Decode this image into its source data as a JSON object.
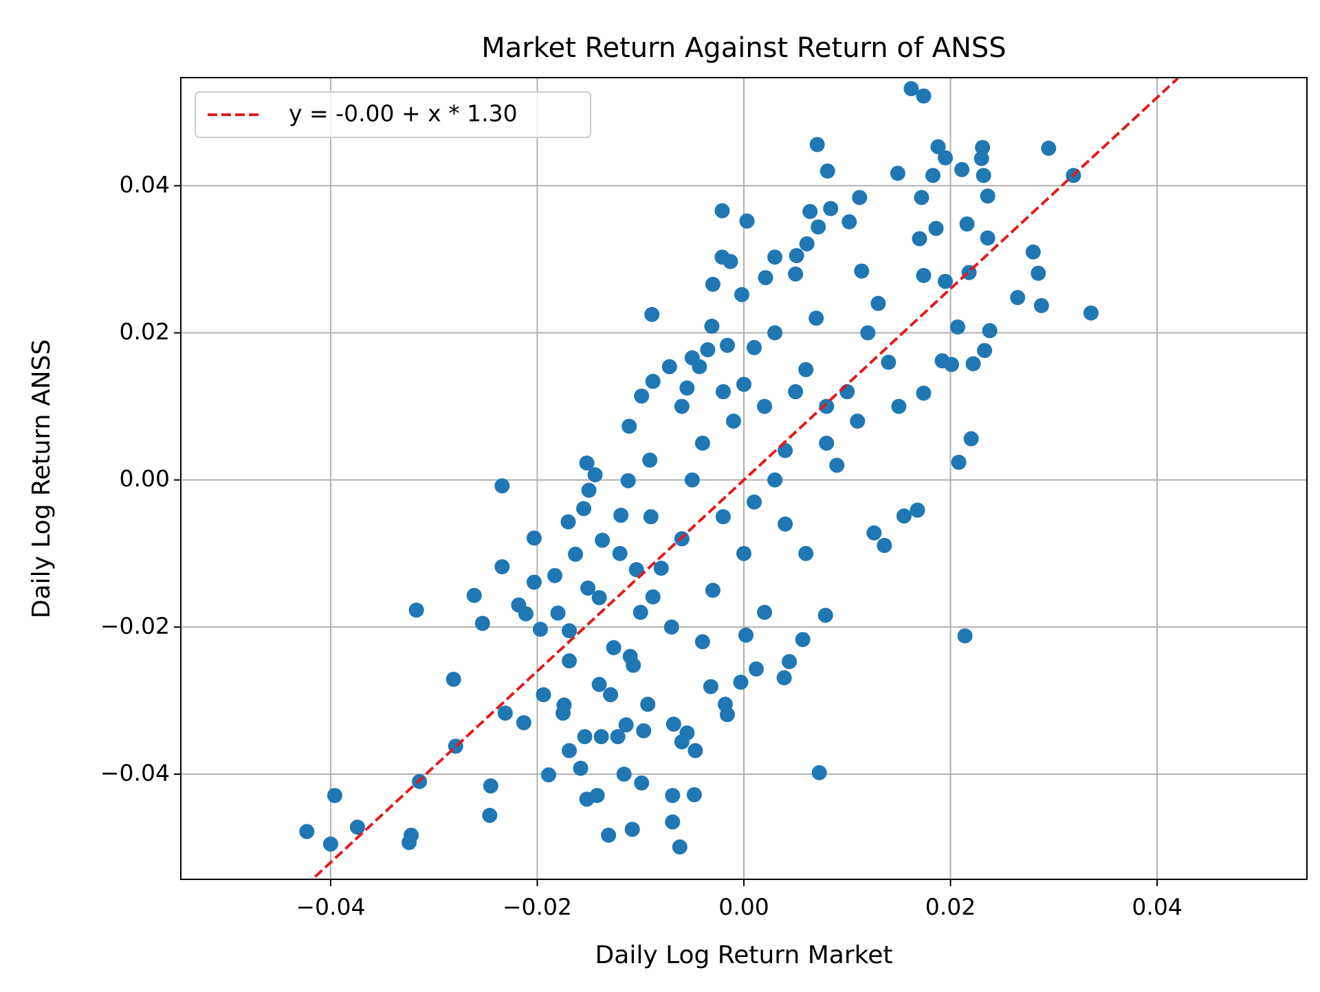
{
  "chart_data": {
    "type": "scatter",
    "title": "Market Return Against Return of ANSS",
    "x_label": "Daily Log Return Market",
    "y_label": "Daily Log Return ANSS",
    "xlim": [
      -0.0545,
      0.0545
    ],
    "ylim": [
      -0.0543,
      0.0547
    ],
    "xticks": [
      {
        "value": -0.04,
        "label": "−0.04"
      },
      {
        "value": -0.02,
        "label": "−0.02"
      },
      {
        "value": 0,
        "label": "0.00"
      },
      0.02,
      0.04
    ],
    "yticks": [
      {
        "value": -0.04,
        "label": "−0.04"
      },
      {
        "value": -0.02,
        "label": "−0.02"
      },
      {
        "value": 0,
        "label": "0.00"
      },
      0.02,
      0.04
    ],
    "grid": true,
    "legend": "upper-left",
    "series": [
      {
        "type": "scatter",
        "color": "#1f77b4",
        "x": [
          -0.0423,
          -0.04,
          -0.0396,
          -0.0374,
          -0.0324,
          -0.0322,
          -0.0314,
          -0.0317,
          -0.0281,
          -0.0279,
          -0.0261,
          -0.0253,
          -0.0246,
          -0.0245,
          -0.0234,
          -0.0234,
          -0.0231,
          -0.0218,
          -0.0213,
          -0.0211,
          -0.0203,
          -0.0203,
          -0.0197,
          -0.0194,
          -0.0189,
          -0.0183,
          -0.018,
          -0.0175,
          -0.0174,
          -0.017,
          -0.0169,
          -0.0169,
          -0.0169,
          -0.0163,
          -0.0158,
          -0.0155,
          -0.0152,
          -0.015,
          -0.0154,
          -0.0152,
          -0.0151,
          -0.0144,
          -0.0142,
          -0.014,
          -0.0138,
          -0.0137,
          -0.0131,
          -0.0129,
          -0.0126,
          -0.0122,
          -0.0119,
          -0.0116,
          -0.0114,
          -0.0112,
          -0.0111,
          -0.0108,
          -0.0107,
          -0.0104,
          -0.0099,
          -0.0099,
          -0.0097,
          -0.0093,
          -0.0089,
          -0.0088,
          -0.0091,
          -0.0088,
          -0.0072,
          -0.0069,
          -0.0069,
          -0.0068,
          -0.0062,
          -0.006,
          -0.0055,
          -0.0055,
          -0.005,
          -0.0048,
          -0.0047,
          -0.0043,
          -0.0035,
          -0.0032,
          -0.003,
          -0.0031,
          -0.0021,
          -0.0021,
          -0.0018,
          -0.0016,
          -0.0013,
          -0.0016,
          0.0003,
          -0.0002,
          -0.0003,
          0.0002,
          0.0012,
          0.0021,
          0.003,
          0.0039,
          0.0044,
          0.0051,
          0.0057,
          0.0061,
          0.0064,
          0.0071,
          0.0073,
          0.0072,
          0.0079,
          0.0081,
          0.0084,
          0.0102,
          0.0112,
          0.0114,
          0.0126,
          0.0136,
          0.0149,
          0.0155,
          0.0162,
          0.0174,
          0.0168,
          0.017,
          0.0172,
          0.0174,
          0.0174,
          0.0183,
          0.0186,
          0.0188,
          0.0195,
          0.0195,
          0.0192,
          0.0201,
          0.0207,
          0.0208,
          0.0211,
          0.0214,
          0.0216,
          0.0218,
          0.022,
          0.0222,
          0.0231,
          0.023,
          0.0232,
          0.0233,
          0.0236,
          0.0236,
          0.0238,
          0.0265,
          0.028,
          0.0285,
          0.0288,
          0.0295,
          0.0319,
          0.0336,
          -0.004,
          0.002,
          0.005,
          -0.002,
          0.0,
          0.006,
          0.008,
          -0.006,
          0.003,
          -0.001,
          0.004,
          0.01,
          0.012,
          -0.008,
          -0.01,
          0.001,
          -0.003,
          0.007,
          0.009,
          -0.005,
          0.002,
          -0.007,
          0.011,
          0.014,
          -0.012,
          0.005,
          -0.004,
          0.0,
          0.006,
          -0.009,
          0.003,
          0.008,
          -0.002,
          0.015,
          -0.014,
          0.001,
          0.004,
          -0.006,
          0.013,
          -0.011
        ],
        "values": [
          -0.0478,
          -0.0495,
          -0.0429,
          -0.0472,
          -0.0493,
          -0.0483,
          -0.041,
          -0.0177,
          -0.0271,
          -0.0362,
          -0.0157,
          -0.0195,
          -0.0456,
          -0.0416,
          -0.0008,
          -0.0118,
          -0.0317,
          -0.017,
          -0.033,
          -0.0182,
          -0.0079,
          -0.0139,
          -0.0203,
          -0.0292,
          -0.0401,
          -0.013,
          -0.0181,
          -0.0317,
          -0.0306,
          -0.0057,
          -0.0205,
          -0.0246,
          -0.0368,
          -0.0101,
          -0.0392,
          -0.0039,
          0.0023,
          -0.0014,
          -0.0349,
          -0.0434,
          -0.0147,
          0.0007,
          -0.0429,
          -0.0278,
          -0.0349,
          -0.0082,
          -0.0483,
          -0.0292,
          -0.0228,
          -0.0349,
          -0.0048,
          -0.04,
          -0.0333,
          -0.0001,
          0.0073,
          -0.0475,
          -0.0252,
          -0.0122,
          0.0114,
          -0.0412,
          -0.0341,
          -0.0305,
          0.0225,
          0.0134,
          0.0027,
          -0.0159,
          0.0154,
          -0.0465,
          -0.0429,
          -0.0332,
          -0.0499,
          -0.0356,
          -0.0344,
          0.0125,
          0.0166,
          -0.0428,
          -0.0368,
          0.0154,
          0.0177,
          -0.0281,
          0.0266,
          0.0209,
          0.0366,
          0.0303,
          -0.0305,
          -0.0319,
          0.0297,
          0.0183,
          0.0352,
          0.0252,
          -0.0275,
          -0.0211,
          -0.0257,
          0.0275,
          0.0303,
          -0.0269,
          -0.0247,
          0.0305,
          -0.0217,
          0.0321,
          0.0365,
          0.0456,
          -0.0398,
          0.0344,
          -0.0184,
          0.042,
          0.0369,
          0.0351,
          0.0384,
          0.0284,
          -0.0072,
          -0.0089,
          0.0417,
          -0.0049,
          0.0532,
          0.0522,
          -0.0041,
          0.0328,
          0.0384,
          0.0278,
          0.0118,
          0.0414,
          0.0342,
          0.0453,
          0.0438,
          0.027,
          0.0162,
          0.0157,
          0.0208,
          0.0024,
          0.0422,
          -0.0212,
          0.0348,
          0.0282,
          0.0056,
          0.0158,
          0.0452,
          0.0437,
          0.0414,
          0.0176,
          0.0386,
          0.0329,
          0.0203,
          0.0248,
          0.031,
          0.0281,
          0.0237,
          0.0451,
          0.0414,
          0.0227,
          0.005,
          0.01,
          0.012,
          -0.005,
          -0.01,
          0.015,
          0.005,
          -0.008,
          0.0,
          0.008,
          -0.006,
          0.012,
          0.02,
          -0.012,
          -0.018,
          0.018,
          -0.015,
          0.022,
          0.002,
          0.0,
          -0.018,
          -0.02,
          0.008,
          0.016,
          -0.01,
          0.028,
          -0.022,
          0.013,
          -0.01,
          -0.005,
          0.02,
          0.01,
          0.012,
          0.01,
          -0.016,
          -0.003,
          0.004,
          0.01,
          0.024,
          -0.024
        ]
      },
      {
        "type": "line",
        "name": "y = -0.00 + x * 1.30",
        "color": "#e31a1c",
        "dash": true,
        "x": [
          -0.0415,
          0.042
        ],
        "values": [
          -0.05395,
          0.0546
        ]
      }
    ]
  }
}
